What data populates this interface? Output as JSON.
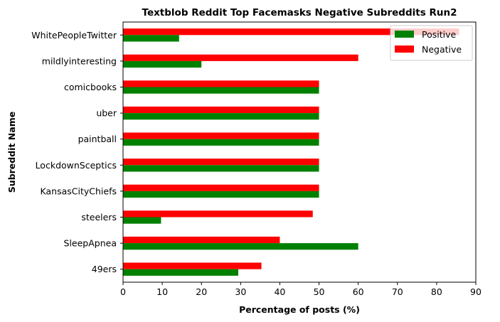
{
  "chart_data": {
    "type": "bar",
    "orientation": "horizontal",
    "title": "Textblob Reddit Top Facemasks Negative Subreddits Run2",
    "xlabel": "Percentage of posts (%)",
    "ylabel": "Subreddit Name",
    "xlim": [
      0,
      90
    ],
    "xticks": [
      "0",
      "10",
      "20",
      "30",
      "40",
      "50",
      "60",
      "70",
      "80",
      "90"
    ],
    "categories": [
      "WhitePeopleTwitter",
      "mildlyinteresting",
      "comicbooks",
      "uber",
      "paintball",
      "LockdownSceptics",
      "KansasCityChiefs",
      "steelers",
      "SleepApnea",
      "49ers"
    ],
    "series": [
      {
        "name": "Positive",
        "color": "#008000",
        "values": [
          14.3,
          20.0,
          50.0,
          50.0,
          50.0,
          50.0,
          50.0,
          9.7,
          60.0,
          29.4
        ]
      },
      {
        "name": "Negative",
        "color": "#ff0000",
        "values": [
          85.7,
          60.0,
          50.0,
          50.0,
          50.0,
          50.0,
          50.0,
          48.4,
          40.0,
          35.3
        ]
      }
    ],
    "legend": "top-right",
    "grid": false
  }
}
